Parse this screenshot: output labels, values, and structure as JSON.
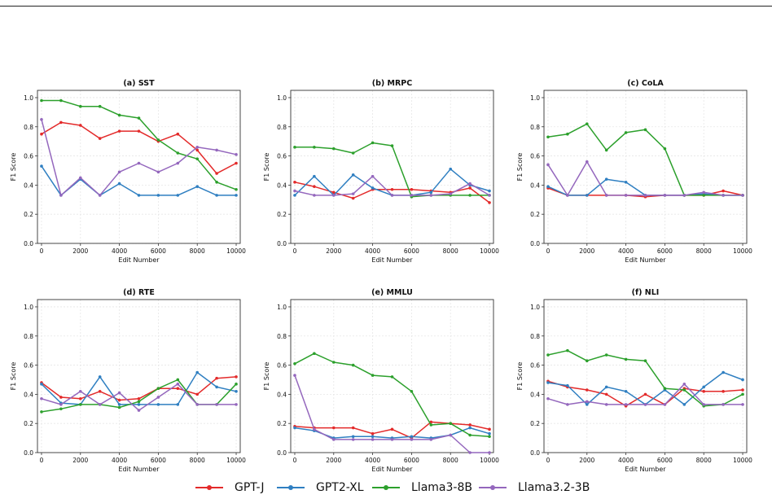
{
  "colors": {
    "GPT-J": "#e32a2a",
    "GPT2-XL": "#2f7fc1",
    "Llama3-8B": "#2ca02c",
    "Llama3.2-3B": "#9467bd"
  },
  "legend": [
    {
      "label": "GPT-J",
      "color": "#e32a2a"
    },
    {
      "label": "GPT2-XL",
      "color": "#2f7fc1"
    },
    {
      "label": "Llama3-8B",
      "color": "#2ca02c"
    },
    {
      "label": "Llama3.2-3B",
      "color": "#9467bd"
    }
  ],
  "chart_data": [
    {
      "type": "line",
      "title": "(a) SST",
      "xlabel": "Edit Number",
      "ylabel": "F1 Score",
      "x": [
        0,
        1000,
        2000,
        3000,
        4000,
        5000,
        6000,
        7000,
        8000,
        9000,
        10000
      ],
      "xlim": [
        0,
        10000
      ],
      "ylim": [
        0,
        1.05
      ],
      "xticks": [
        "0",
        "2000",
        "4000",
        "6000",
        "8000",
        "10000"
      ],
      "yticks": [
        "0.0",
        "0.2",
        "0.4",
        "0.6",
        "0.8",
        "1.0"
      ],
      "grid": true,
      "series": [
        {
          "name": "GPT-J",
          "values": [
            0.75,
            0.83,
            0.81,
            0.72,
            0.77,
            0.77,
            0.7,
            0.75,
            0.64,
            0.48,
            0.55
          ]
        },
        {
          "name": "GPT2-XL",
          "values": [
            0.53,
            0.33,
            0.44,
            0.33,
            0.41,
            0.33,
            0.33,
            0.33,
            0.39,
            0.33,
            0.33
          ]
        },
        {
          "name": "Llama3-8B",
          "values": [
            0.98,
            0.98,
            0.94,
            0.94,
            0.88,
            0.86,
            0.71,
            0.62,
            0.58,
            0.42,
            0.37
          ]
        },
        {
          "name": "Llama3.2-3B",
          "values": [
            0.85,
            0.33,
            0.45,
            0.33,
            0.49,
            0.55,
            0.49,
            0.55,
            0.66,
            0.64,
            0.61
          ]
        }
      ]
    },
    {
      "type": "line",
      "title": "(b) MRPC",
      "xlabel": "Edit Number",
      "ylabel": "F1 Score",
      "x": [
        0,
        1000,
        2000,
        3000,
        4000,
        5000,
        6000,
        7000,
        8000,
        9000,
        10000
      ],
      "xlim": [
        0,
        10000
      ],
      "ylim": [
        0,
        1.05
      ],
      "xticks": [
        "0",
        "2000",
        "4000",
        "6000",
        "8000",
        "10000"
      ],
      "yticks": [
        "0.0",
        "0.2",
        "0.4",
        "0.6",
        "0.8",
        "1.0"
      ],
      "grid": true,
      "series": [
        {
          "name": "GPT-J",
          "values": [
            0.42,
            0.39,
            0.35,
            0.31,
            0.37,
            0.37,
            0.37,
            0.36,
            0.35,
            0.38,
            0.28
          ]
        },
        {
          "name": "GPT2-XL",
          "values": [
            0.33,
            0.46,
            0.33,
            0.47,
            0.38,
            0.33,
            0.33,
            0.35,
            0.51,
            0.4,
            0.36
          ]
        },
        {
          "name": "Llama3-8B",
          "values": [
            0.66,
            0.66,
            0.65,
            0.62,
            0.69,
            0.67,
            0.32,
            0.33,
            0.33,
            0.33,
            0.33
          ]
        },
        {
          "name": "Llama3.2-3B",
          "values": [
            0.36,
            0.33,
            0.33,
            0.34,
            0.46,
            0.33,
            0.33,
            0.33,
            0.34,
            0.41,
            0.33
          ]
        }
      ]
    },
    {
      "type": "line",
      "title": "(c) CoLA",
      "xlabel": "Edit Number",
      "ylabel": "F1 Score",
      "x": [
        0,
        1000,
        2000,
        3000,
        4000,
        5000,
        6000,
        7000,
        8000,
        9000,
        10000
      ],
      "xlim": [
        0,
        10000
      ],
      "ylim": [
        0,
        1.05
      ],
      "xticks": [
        "0",
        "2000",
        "4000",
        "6000",
        "8000",
        "10000"
      ],
      "yticks": [
        "0.0",
        "0.2",
        "0.4",
        "0.6",
        "0.8",
        "1.0"
      ],
      "grid": true,
      "series": [
        {
          "name": "GPT-J",
          "values": [
            0.38,
            0.33,
            0.33,
            0.33,
            0.33,
            0.32,
            0.33,
            0.33,
            0.33,
            0.36,
            0.33
          ]
        },
        {
          "name": "GPT2-XL",
          "values": [
            0.39,
            0.33,
            0.33,
            0.44,
            0.42,
            0.33,
            0.33,
            0.33,
            0.34,
            0.33,
            0.33
          ]
        },
        {
          "name": "Llama3-8B",
          "values": [
            0.73,
            0.75,
            0.82,
            0.64,
            0.76,
            0.78,
            0.65,
            0.33,
            0.33,
            0.33,
            0.33
          ]
        },
        {
          "name": "Llama3.2-3B",
          "values": [
            0.54,
            0.33,
            0.56,
            0.33,
            0.33,
            0.33,
            0.33,
            0.33,
            0.35,
            0.33,
            0.33
          ]
        }
      ]
    },
    {
      "type": "line",
      "title": "(d) RTE",
      "xlabel": "Edit Number",
      "ylabel": "F1 Score",
      "x": [
        0,
        1000,
        2000,
        3000,
        4000,
        5000,
        6000,
        7000,
        8000,
        9000,
        10000
      ],
      "xlim": [
        0,
        10000
      ],
      "ylim": [
        0,
        1.05
      ],
      "xticks": [
        "0",
        "2000",
        "4000",
        "6000",
        "8000",
        "10000"
      ],
      "yticks": [
        "0.0",
        "0.2",
        "0.4",
        "0.6",
        "0.8",
        "1.0"
      ],
      "grid": true,
      "series": [
        {
          "name": "GPT-J",
          "values": [
            0.48,
            0.38,
            0.37,
            0.42,
            0.36,
            0.37,
            0.44,
            0.44,
            0.4,
            0.51,
            0.52
          ]
        },
        {
          "name": "GPT2-XL",
          "values": [
            0.47,
            0.34,
            0.33,
            0.52,
            0.33,
            0.33,
            0.33,
            0.33,
            0.55,
            0.45,
            0.42
          ]
        },
        {
          "name": "Llama3-8B",
          "values": [
            0.28,
            0.3,
            0.33,
            0.33,
            0.31,
            0.35,
            0.44,
            0.5,
            0.33,
            0.33,
            0.47
          ]
        },
        {
          "name": "Llama3.2-3B",
          "values": [
            0.37,
            0.33,
            0.42,
            0.33,
            0.41,
            0.29,
            0.38,
            0.47,
            0.33,
            0.33,
            0.33
          ]
        }
      ]
    },
    {
      "type": "line",
      "title": "(e) MMLU",
      "xlabel": "Edit Number",
      "ylabel": "F1 Score",
      "x": [
        0,
        1000,
        2000,
        3000,
        4000,
        5000,
        6000,
        7000,
        8000,
        9000,
        10000
      ],
      "xlim": [
        0,
        10000
      ],
      "ylim": [
        0,
        1.05
      ],
      "xticks": [
        "0",
        "2000",
        "4000",
        "6000",
        "8000",
        "10000"
      ],
      "yticks": [
        "0.0",
        "0.2",
        "0.4",
        "0.6",
        "0.8",
        "1.0"
      ],
      "grid": true,
      "series": [
        {
          "name": "GPT-J",
          "values": [
            0.18,
            0.17,
            0.17,
            0.17,
            0.13,
            0.16,
            0.1,
            0.21,
            0.2,
            0.19,
            0.16
          ]
        },
        {
          "name": "GPT2-XL",
          "values": [
            0.17,
            0.15,
            0.1,
            0.11,
            0.11,
            0.1,
            0.11,
            0.1,
            0.12,
            0.17,
            0.13
          ]
        },
        {
          "name": "Llama3-8B",
          "values": [
            0.61,
            0.68,
            0.62,
            0.6,
            0.53,
            0.52,
            0.42,
            0.19,
            0.2,
            0.12,
            0.11
          ]
        },
        {
          "name": "Llama3.2-3B",
          "values": [
            0.53,
            0.16,
            0.09,
            0.09,
            0.09,
            0.09,
            0.09,
            0.09,
            0.12,
            0.0,
            0.0
          ]
        }
      ]
    },
    {
      "type": "line",
      "title": "(f) NLI",
      "xlabel": "Edit Number",
      "ylabel": "F1 Score",
      "x": [
        0,
        1000,
        2000,
        3000,
        4000,
        5000,
        6000,
        7000,
        8000,
        9000,
        10000
      ],
      "xlim": [
        0,
        10000
      ],
      "ylim": [
        0,
        1.05
      ],
      "xticks": [
        "0",
        "2000",
        "4000",
        "6000",
        "8000",
        "10000"
      ],
      "yticks": [
        "0.0",
        "0.2",
        "0.4",
        "0.6",
        "0.8",
        "1.0"
      ],
      "grid": true,
      "series": [
        {
          "name": "GPT-J",
          "values": [
            0.49,
            0.45,
            0.43,
            0.4,
            0.32,
            0.4,
            0.33,
            0.44,
            0.42,
            0.42,
            0.43
          ]
        },
        {
          "name": "GPT2-XL",
          "values": [
            0.48,
            0.46,
            0.33,
            0.45,
            0.42,
            0.33,
            0.43,
            0.33,
            0.45,
            0.55,
            0.5
          ]
        },
        {
          "name": "Llama3-8B",
          "values": [
            0.67,
            0.7,
            0.63,
            0.67,
            0.64,
            0.63,
            0.44,
            0.43,
            0.32,
            0.33,
            0.4
          ]
        },
        {
          "name": "Llama3.2-3B",
          "values": [
            0.37,
            0.33,
            0.35,
            0.33,
            0.33,
            0.33,
            0.33,
            0.47,
            0.33,
            0.33,
            0.33
          ]
        }
      ]
    }
  ]
}
